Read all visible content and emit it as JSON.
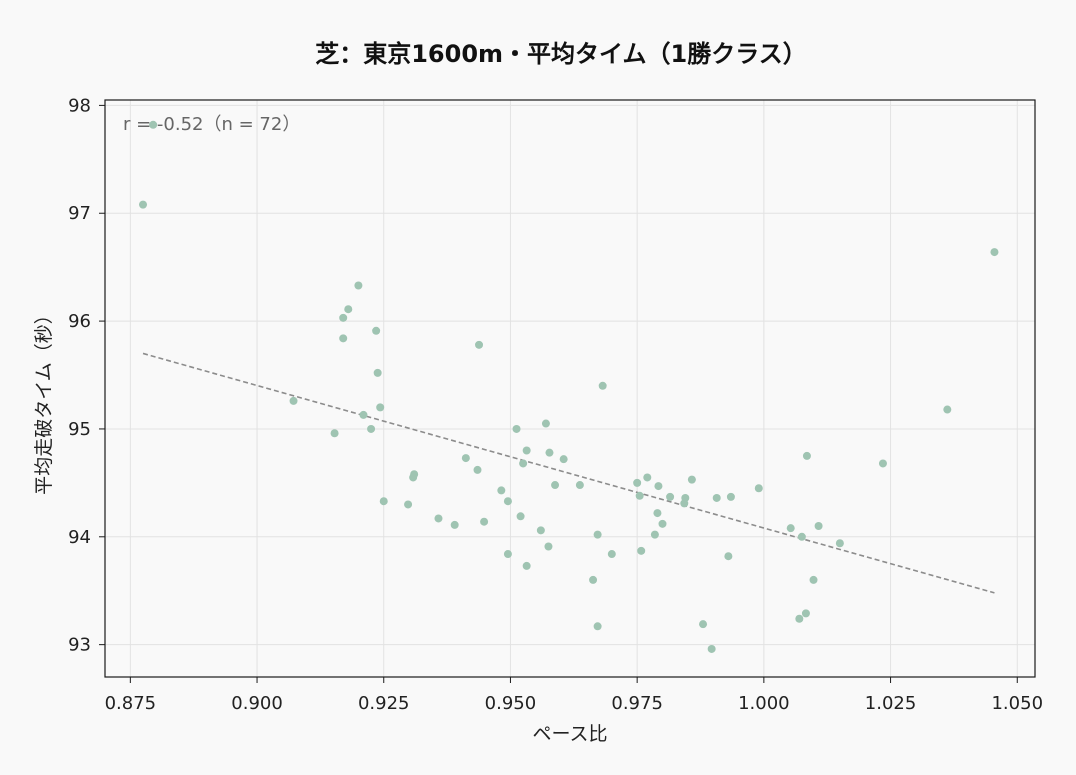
{
  "chart_data": {
    "type": "scatter",
    "title": "芝：東京1600m・平均タイム（1勝クラス）",
    "xlabel": "ペース比",
    "ylabel": "平均走破タイム（秒）",
    "annotation": "r = -0.52（n = 72）",
    "xlim": [
      0.87,
      1.0535
    ],
    "ylim": [
      92.7,
      98.05
    ],
    "xticks": [
      0.875,
      0.9,
      0.925,
      0.95,
      0.975,
      1.0,
      1.025,
      1.05
    ],
    "xtick_labels": [
      "0.875",
      "0.900",
      "0.925",
      "0.950",
      "0.975",
      "1.000",
      "1.025",
      "1.050"
    ],
    "yticks": [
      93,
      94,
      95,
      96,
      97,
      98
    ],
    "ytick_labels": [
      "93",
      "94",
      "95",
      "96",
      "97",
      "98"
    ],
    "grid": true,
    "point_color": "#9fc4b2",
    "trend_color": "#8c8c8c",
    "trendline": {
      "x": [
        0.8775,
        1.0455
      ],
      "y": [
        95.7,
        93.48
      ]
    },
    "points": [
      {
        "x": 0.8795,
        "y": 97.82
      },
      {
        "x": 0.8775,
        "y": 97.08
      },
      {
        "x": 0.92,
        "y": 96.33
      },
      {
        "x": 0.918,
        "y": 96.11
      },
      {
        "x": 0.917,
        "y": 96.03
      },
      {
        "x": 0.9235,
        "y": 95.91
      },
      {
        "x": 0.917,
        "y": 95.84
      },
      {
        "x": 0.9438,
        "y": 95.78
      },
      {
        "x": 0.9238,
        "y": 95.52
      },
      {
        "x": 0.9682,
        "y": 95.4
      },
      {
        "x": 0.9072,
        "y": 95.26
      },
      {
        "x": 0.9243,
        "y": 95.2
      },
      {
        "x": 0.921,
        "y": 95.13
      },
      {
        "x": 0.957,
        "y": 95.05
      },
      {
        "x": 0.9225,
        "y": 95.0
      },
      {
        "x": 0.9512,
        "y": 95.0
      },
      {
        "x": 0.9153,
        "y": 94.96
      },
      {
        "x": 0.9532,
        "y": 94.8
      },
      {
        "x": 0.9577,
        "y": 94.78
      },
      {
        "x": 1.0085,
        "y": 94.75
      },
      {
        "x": 0.9412,
        "y": 94.73
      },
      {
        "x": 0.9605,
        "y": 94.72
      },
      {
        "x": 0.9525,
        "y": 94.68
      },
      {
        "x": 1.0235,
        "y": 94.68
      },
      {
        "x": 0.9435,
        "y": 94.62
      },
      {
        "x": 0.931,
        "y": 94.58
      },
      {
        "x": 0.9308,
        "y": 94.55
      },
      {
        "x": 0.977,
        "y": 94.55
      },
      {
        "x": 0.9858,
        "y": 94.53
      },
      {
        "x": 0.975,
        "y": 94.5
      },
      {
        "x": 0.9588,
        "y": 94.48
      },
      {
        "x": 0.9637,
        "y": 94.48
      },
      {
        "x": 0.9792,
        "y": 94.47
      },
      {
        "x": 0.999,
        "y": 94.45
      },
      {
        "x": 0.9482,
        "y": 94.43
      },
      {
        "x": 0.9755,
        "y": 94.38
      },
      {
        "x": 0.9815,
        "y": 94.37
      },
      {
        "x": 0.9935,
        "y": 94.37
      },
      {
        "x": 0.9845,
        "y": 94.36
      },
      {
        "x": 0.9907,
        "y": 94.36
      },
      {
        "x": 0.925,
        "y": 94.33
      },
      {
        "x": 0.9495,
        "y": 94.33
      },
      {
        "x": 0.9843,
        "y": 94.31
      },
      {
        "x": 0.9298,
        "y": 94.3
      },
      {
        "x": 0.979,
        "y": 94.22
      },
      {
        "x": 0.952,
        "y": 94.19
      },
      {
        "x": 0.9358,
        "y": 94.17
      },
      {
        "x": 0.9448,
        "y": 94.14
      },
      {
        "x": 0.98,
        "y": 94.12
      },
      {
        "x": 0.939,
        "y": 94.11
      },
      {
        "x": 1.0108,
        "y": 94.1
      },
      {
        "x": 1.0053,
        "y": 94.08
      },
      {
        "x": 0.956,
        "y": 94.06
      },
      {
        "x": 0.9672,
        "y": 94.02
      },
      {
        "x": 0.9785,
        "y": 94.02
      },
      {
        "x": 1.0075,
        "y": 94.0
      },
      {
        "x": 1.015,
        "y": 93.94
      },
      {
        "x": 0.9575,
        "y": 93.91
      },
      {
        "x": 0.9758,
        "y": 93.87
      },
      {
        "x": 0.9495,
        "y": 93.84
      },
      {
        "x": 0.97,
        "y": 93.84
      },
      {
        "x": 0.993,
        "y": 93.82
      },
      {
        "x": 0.9532,
        "y": 93.73
      },
      {
        "x": 0.9663,
        "y": 93.6
      },
      {
        "x": 1.0098,
        "y": 93.6
      },
      {
        "x": 1.0083,
        "y": 93.29
      },
      {
        "x": 1.007,
        "y": 93.24
      },
      {
        "x": 0.988,
        "y": 93.19
      },
      {
        "x": 0.9672,
        "y": 93.17
      },
      {
        "x": 0.9897,
        "y": 92.96
      },
      {
        "x": 1.0362,
        "y": 95.18
      },
      {
        "x": 1.0455,
        "y": 96.64
      }
    ]
  }
}
